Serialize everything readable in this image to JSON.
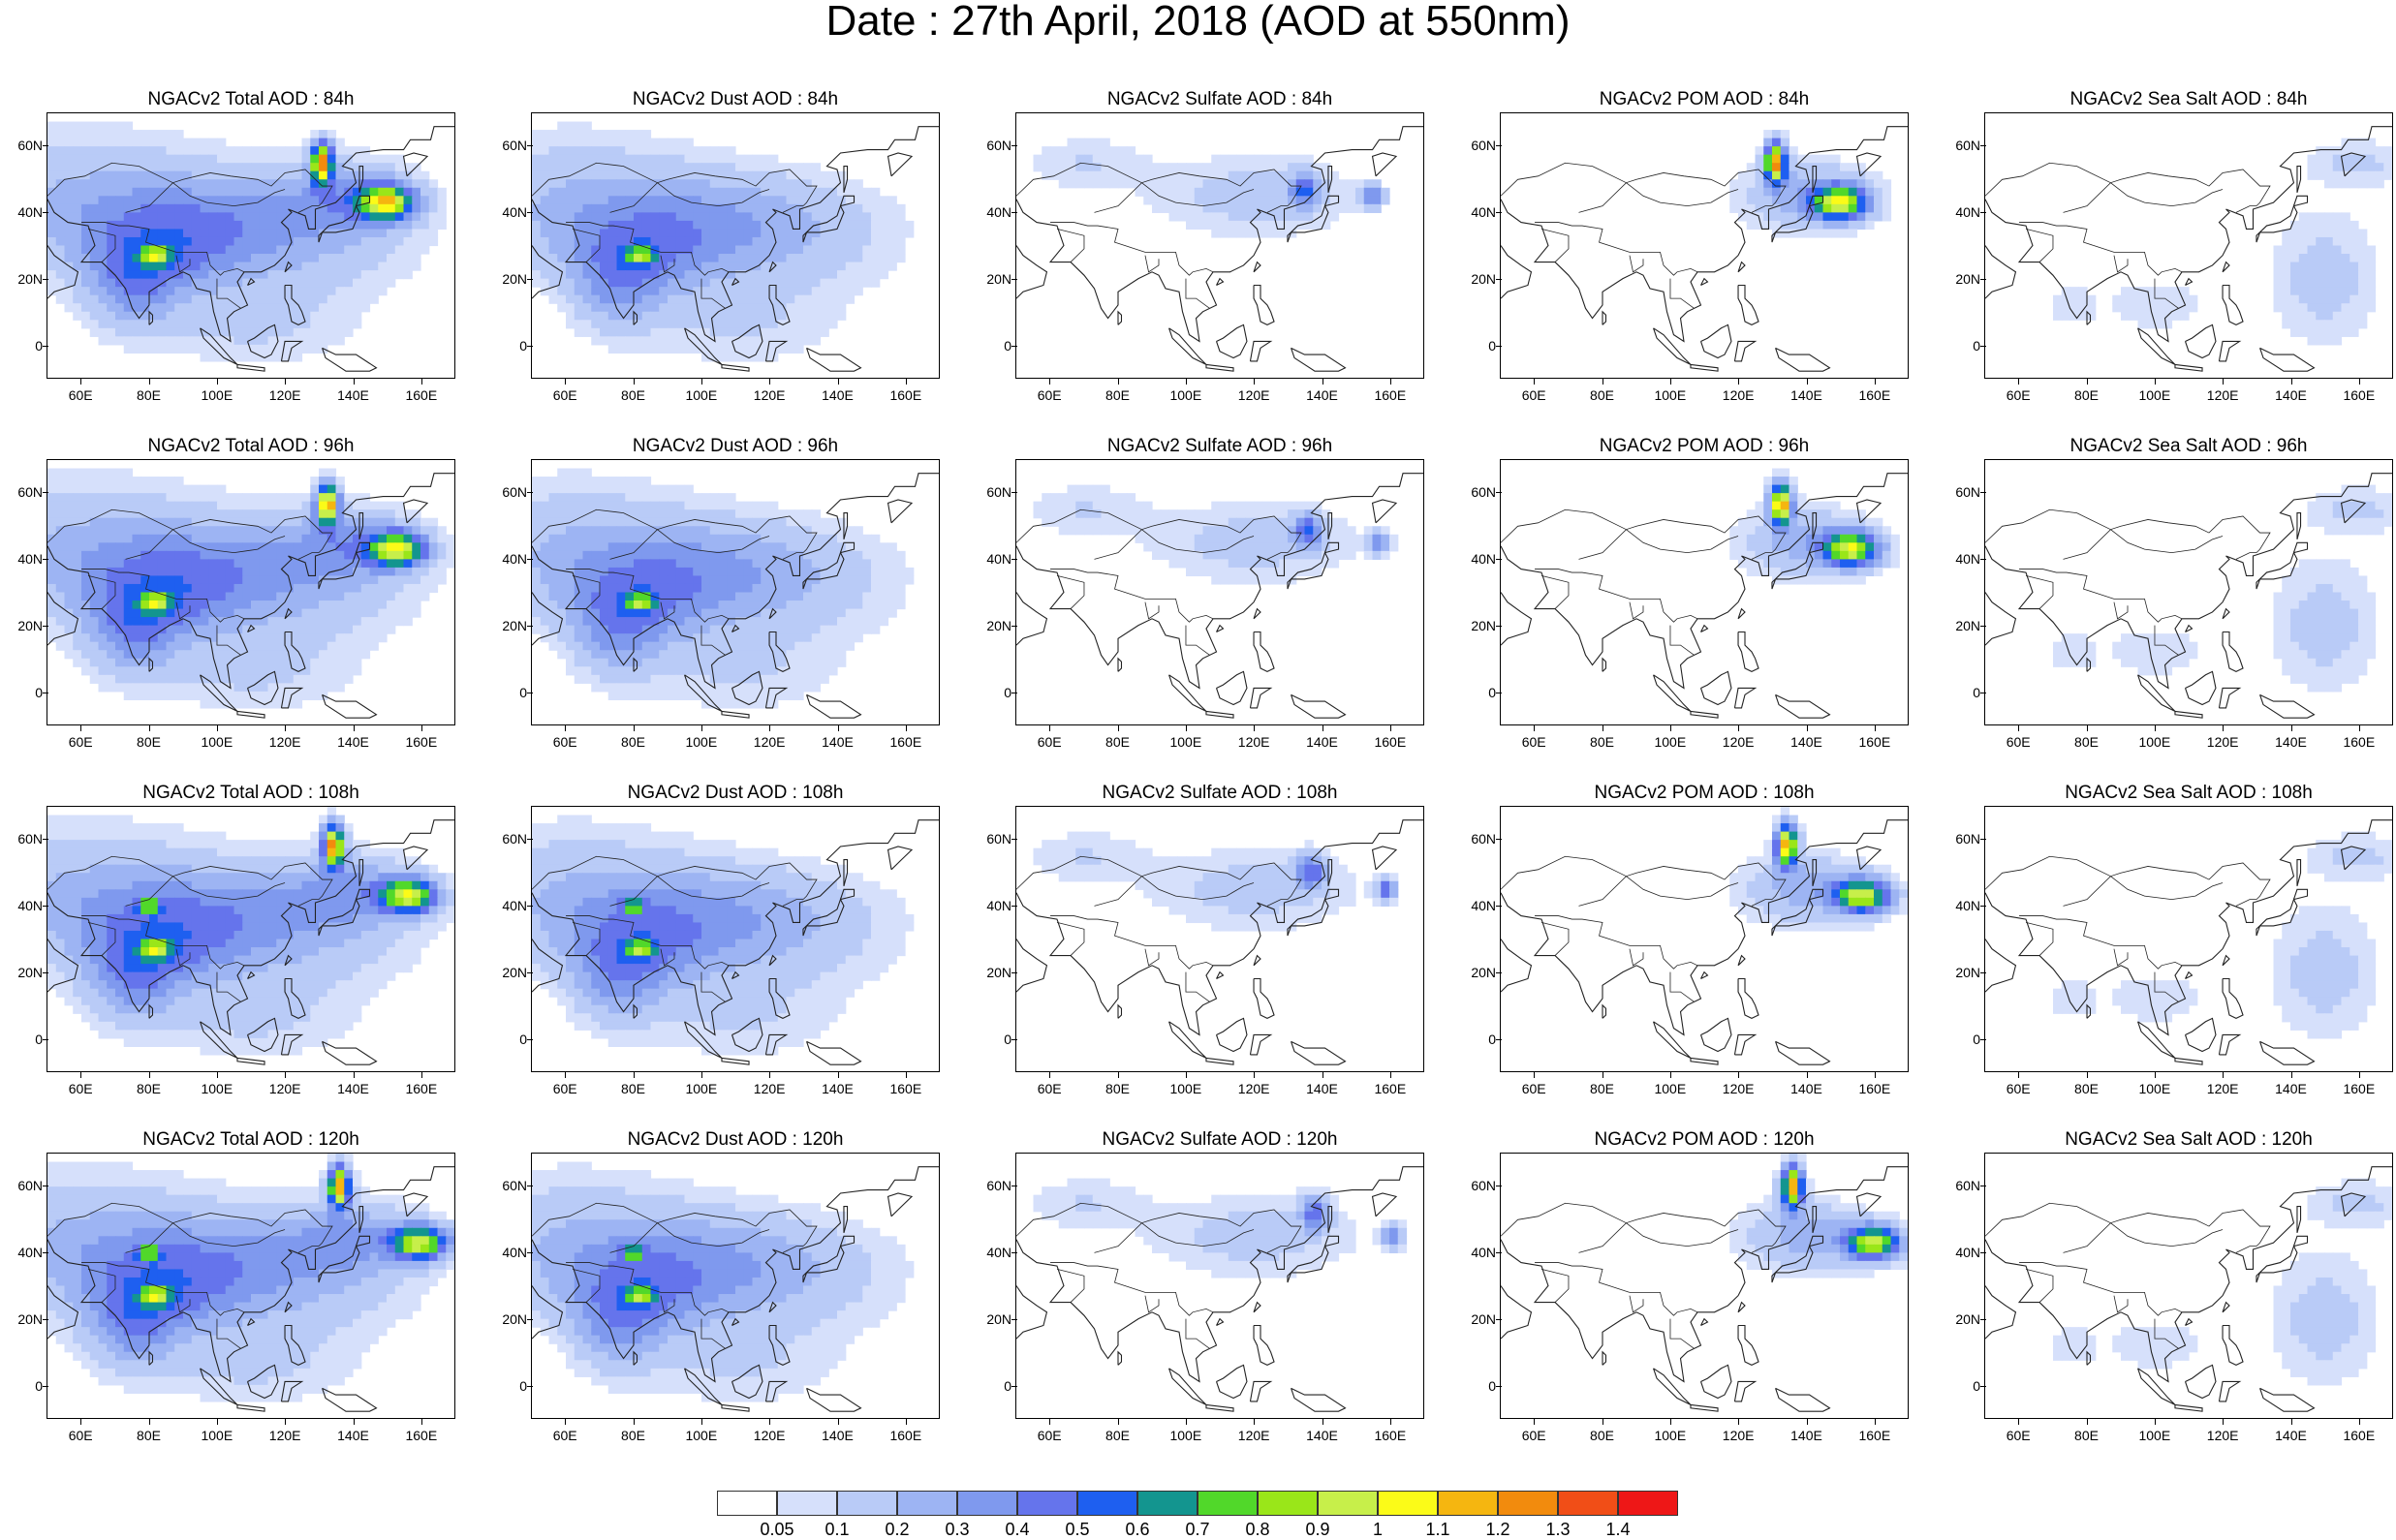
{
  "title": "Date : 27th April, 2018 (AOD at 550nm)",
  "panels": [
    {
      "title": "NGACv2 Total AOD : 84h",
      "field": "total",
      "hour": 84
    },
    {
      "title": "NGACv2 Dust AOD : 84h",
      "field": "dust",
      "hour": 84
    },
    {
      "title": "NGACv2 Sulfate AOD : 84h",
      "field": "sulfate",
      "hour": 84
    },
    {
      "title": "NGACv2 POM AOD : 84h",
      "field": "pom",
      "hour": 84
    },
    {
      "title": "NGACv2 Sea Salt AOD : 84h",
      "field": "seasalt",
      "hour": 84
    },
    {
      "title": "NGACv2 Total AOD : 96h",
      "field": "total",
      "hour": 96
    },
    {
      "title": "NGACv2 Dust AOD : 96h",
      "field": "dust",
      "hour": 96
    },
    {
      "title": "NGACv2 Sulfate AOD : 96h",
      "field": "sulfate",
      "hour": 96
    },
    {
      "title": "NGACv2 POM AOD : 96h",
      "field": "pom",
      "hour": 96
    },
    {
      "title": "NGACv2 Sea Salt AOD : 96h",
      "field": "seasalt",
      "hour": 96
    },
    {
      "title": "NGACv2 Total AOD : 108h",
      "field": "total",
      "hour": 108
    },
    {
      "title": "NGACv2 Dust AOD : 108h",
      "field": "dust",
      "hour": 108
    },
    {
      "title": "NGACv2 Sulfate AOD : 108h",
      "field": "sulfate",
      "hour": 108
    },
    {
      "title": "NGACv2 POM AOD : 108h",
      "field": "pom",
      "hour": 108
    },
    {
      "title": "NGACv2 Sea Salt AOD : 108h",
      "field": "seasalt",
      "hour": 108
    },
    {
      "title": "NGACv2 Total AOD : 120h",
      "field": "total",
      "hour": 120
    },
    {
      "title": "NGACv2 Dust AOD : 120h",
      "field": "dust",
      "hour": 120
    },
    {
      "title": "NGACv2 Sulfate AOD : 120h",
      "field": "sulfate",
      "hour": 120
    },
    {
      "title": "NGACv2 POM AOD : 120h",
      "field": "pom",
      "hour": 120
    },
    {
      "title": "NGACv2 Sea Salt  AOD : 120h",
      "field": "seasalt",
      "hour": 120
    }
  ],
  "axes": {
    "lat_labels": [
      "60N",
      "40N",
      "20N",
      "0"
    ],
    "lat_values": [
      60,
      40,
      20,
      0
    ],
    "lon_labels": [
      "60E",
      "80E",
      "100E",
      "120E",
      "140E",
      "160E"
    ],
    "lon_values": [
      60,
      80,
      100,
      120,
      140,
      160
    ],
    "lon_range": [
      50,
      170
    ],
    "lat_range": [
      -10,
      70
    ]
  },
  "colorbar": {
    "levels": [
      "0.05",
      "0.1",
      "0.2",
      "0.3",
      "0.4",
      "0.5",
      "0.6",
      "0.7",
      "0.8",
      "0.9",
      "1",
      "1.1",
      "1.2",
      "1.3",
      "1.4"
    ],
    "colors": [
      "#ffffff",
      "#d6e0fb",
      "#b9cbf7",
      "#9db4f3",
      "#7f99ee",
      "#6574ec",
      "#1e5ff0",
      "#13958f",
      "#51d82a",
      "#9ae619",
      "#c7ef4a",
      "#fbfb18",
      "#f5b610",
      "#f28b0d",
      "#f14e17",
      "#ee1717"
    ]
  }
}
